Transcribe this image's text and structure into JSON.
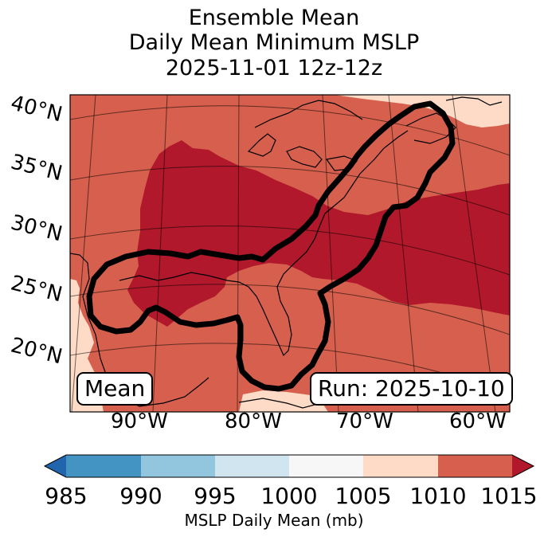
{
  "title": {
    "line1": "Ensemble Mean",
    "line2": "Daily Mean Minimum MSLP",
    "line3": "2025-11-01 12z-12z"
  },
  "latitude_labels": [
    "40°N",
    "35°N",
    "30°N",
    "25°N",
    "20°N"
  ],
  "longitude_labels": [
    "90°W",
    "80°W",
    "70°W",
    "60°W"
  ],
  "box_labels": {
    "mean": "Mean",
    "run": "Run: 2025-10-10"
  },
  "colorbar": {
    "ticks": [
      "985",
      "990",
      "995",
      "1000",
      "1005",
      "1010",
      "1015"
    ],
    "label": "MSLP Daily Mean (mb)",
    "colors": [
      "#2166ac",
      "#4393c3",
      "#92c5de",
      "#d1e5f0",
      "#f7f7f7",
      "#fddbc7",
      "#d6604d",
      "#b2182b"
    ]
  },
  "map_colors": {
    "bin_1005_1010": "#fddbc7",
    "bin_1010_1015": "#d6604d",
    "bin_above_1015": "#b2182b",
    "contour": "#000000"
  }
}
